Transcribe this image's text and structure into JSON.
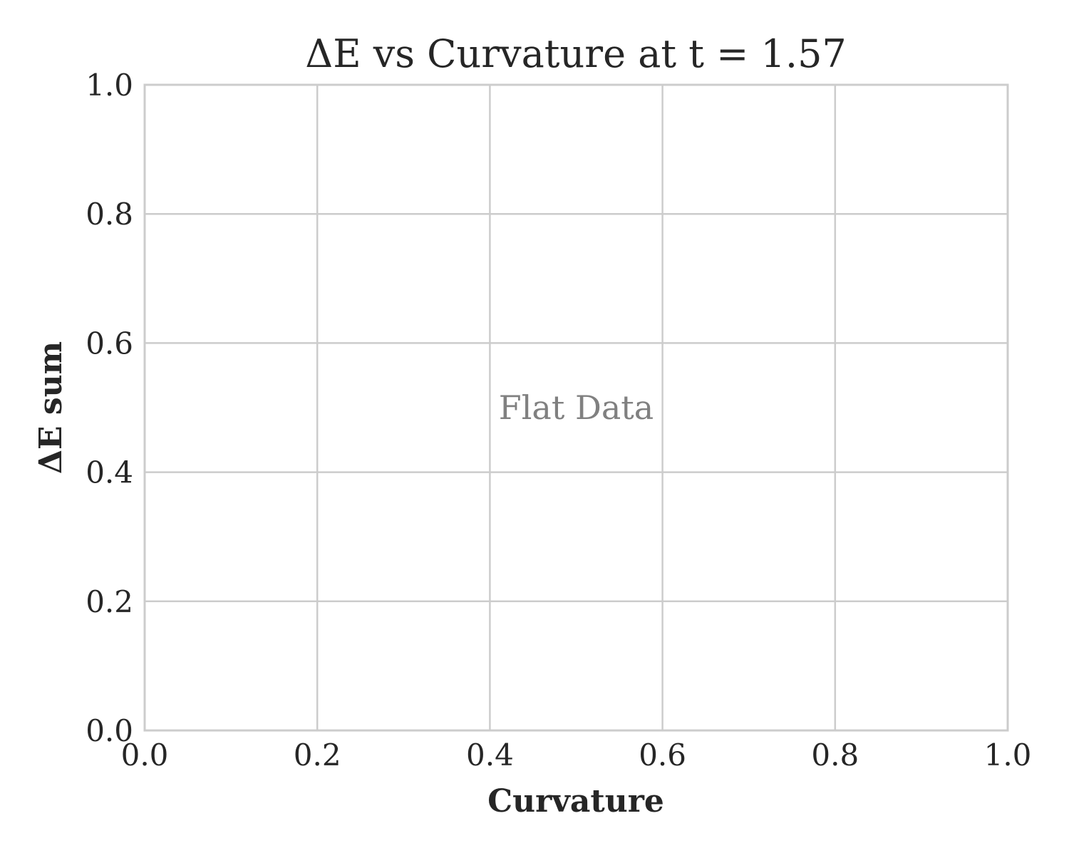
{
  "chart_data": {
    "type": "scatter",
    "title": "ΔE vs Curvature at t = 1.57",
    "xlabel": "Curvature",
    "ylabel": "ΔE sum",
    "xlim": [
      0.0,
      1.0
    ],
    "ylim": [
      0.0,
      1.0
    ],
    "xticks": [
      "0.0",
      "0.2",
      "0.4",
      "0.6",
      "0.8",
      "1.0"
    ],
    "yticks": [
      "0.0",
      "0.2",
      "0.4",
      "0.6",
      "0.8",
      "1.0"
    ],
    "grid": true,
    "series": [],
    "annotation": {
      "text": "Flat Data",
      "x": 0.5,
      "y": 0.5
    },
    "colors": {
      "text": "#262626",
      "grid": "#cccccc",
      "spine": "#cccccc",
      "annotation": "#808080",
      "background": "#ffffff"
    }
  }
}
